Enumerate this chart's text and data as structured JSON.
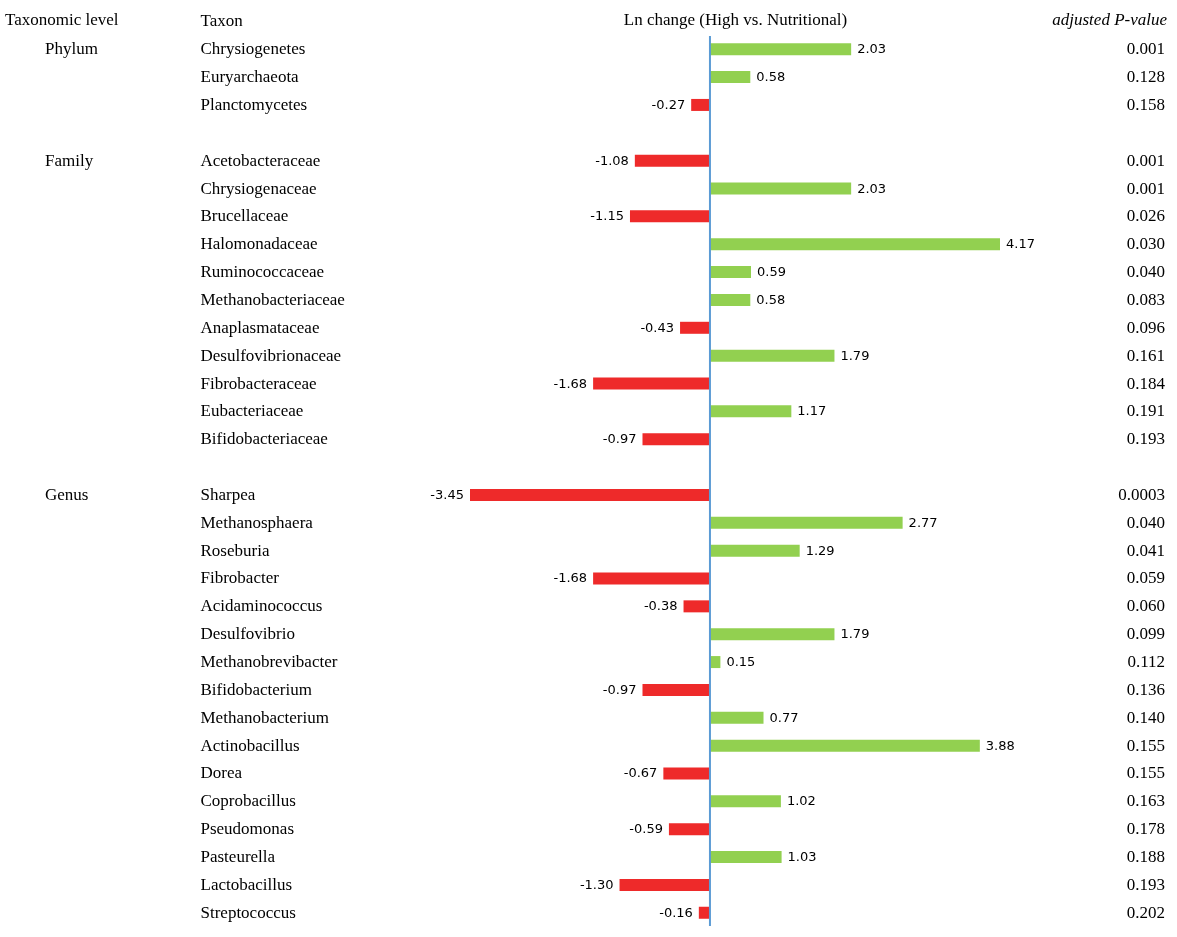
{
  "chart_data": {
    "type": "bar",
    "orientation": "horizontal",
    "xlabel": "Ln change (High vs. Nutritional)",
    "ylabel": "Taxon",
    "y2label": "adjusted P-value",
    "value_labels": [
      "2.03",
      "0.58",
      "-0.27",
      null,
      "-1.08",
      "2.03",
      "-1.15",
      "4.17",
      "0.59",
      "0.58",
      "-0.43",
      "1.79",
      "-1.68",
      "1.17",
      "-0.97",
      null,
      "-3.45",
      "2.77",
      "1.29",
      "-1.68",
      "-0.38",
      "1.79",
      "0.15",
      "-0.97",
      "0.77",
      "3.88",
      "-0.67",
      "1.02",
      "-0.59",
      "1.03",
      "-1.30",
      "-0.16"
    ],
    "categories": [
      "Chrysiogenetes",
      "Euryarchaeota",
      "Planctomycetes",
      null,
      "Acetobacteraceae",
      "Chrysiogenaceae",
      "Brucellaceae",
      "Halomonadaceae",
      "Ruminococcaceae",
      "Methanobacteriaceae",
      "Anaplasmataceae",
      "Desulfovibrionaceae",
      "Fibrobacteraceae",
      "Eubacteriaceae",
      "Bifidobacteriaceae",
      null,
      "Sharpea",
      "Methanosphaera",
      "Roseburia",
      "Fibrobacter",
      "Acidaminococcus",
      "Desulfovibrio",
      "Methanobrevibacter",
      "Bifidobacterium",
      "Methanobacterium",
      "Actinobacillus",
      "Dorea",
      "Coprobacillus",
      "Pseudomonas",
      "Pasteurella",
      "Lactobacillus",
      "Streptococcus"
    ],
    "values": [
      2.03,
      0.58,
      -0.27,
      null,
      -1.08,
      2.03,
      -1.15,
      4.17,
      0.59,
      0.58,
      -0.43,
      1.79,
      -1.68,
      1.17,
      -0.97,
      null,
      -3.45,
      2.77,
      1.29,
      -1.68,
      -0.38,
      1.79,
      0.15,
      -0.97,
      0.77,
      3.88,
      -0.67,
      1.02,
      -0.59,
      1.03,
      -1.3,
      -0.16
    ],
    "colors": [
      "#92d050",
      "#92d050",
      "#ee2a2a",
      null,
      "#ee2a2a",
      "#92d050",
      "#ee2a2a",
      "#92d050",
      "#92d050",
      "#92d050",
      "#ee2a2a",
      "#92d050",
      "#ee2a2a",
      "#92d050",
      "#ee2a2a",
      null,
      "#ee2a2a",
      "#92d050",
      "#92d050",
      "#ee2a2a",
      "#ee2a2a",
      "#92d050",
      "#92d050",
      "#ee2a2a",
      "#92d050",
      "#92d050",
      "#ee2a2a",
      "#92d050",
      "#ee2a2a",
      "#92d050",
      "#ee2a2a",
      "#ee2a2a"
    ],
    "y2_categories": [
      "0.001",
      "0.128",
      "0.158",
      null,
      "0.001",
      "0.001",
      "0.026",
      "0.030",
      "0.040",
      "0.083",
      "0.096",
      "0.161",
      "0.184",
      "0.191",
      "0.193",
      null,
      "0.0003",
      "0.040",
      "0.041",
      "0.059",
      "0.060",
      "0.099",
      "0.112",
      "0.136",
      "0.140",
      "0.155",
      "0.155",
      "0.163",
      "0.178",
      "0.188",
      "0.193",
      "0.202"
    ],
    "ref_lines": [
      {
        "axis": "x",
        "value": 0,
        "color": "#5b9bd5"
      }
    ],
    "annotations": [
      "Taxonomic level",
      "Phylum",
      "Family",
      "Genus"
    ]
  }
}
